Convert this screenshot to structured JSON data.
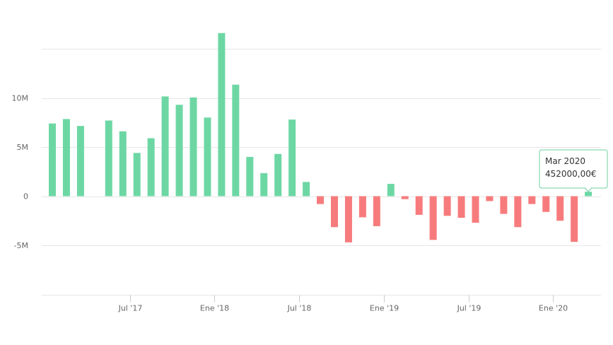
{
  "chart_data": {
    "type": "bar",
    "x": [
      "2017-01",
      "2017-02",
      "2017-03",
      "2017-04",
      "2017-05",
      "2017-06",
      "2017-07",
      "2017-08",
      "2017-09",
      "2017-10",
      "2017-11",
      "2017-12",
      "2018-01",
      "2018-02",
      "2018-03",
      "2018-04",
      "2018-05",
      "2018-06",
      "2018-07",
      "2018-08",
      "2018-09",
      "2018-10",
      "2018-11",
      "2018-12",
      "2019-01",
      "2019-02",
      "2019-03",
      "2019-04",
      "2019-05",
      "2019-06",
      "2019-07",
      "2019-08",
      "2019-09",
      "2019-10",
      "2019-11",
      "2019-12",
      "2020-01",
      "2020-02",
      "2020-03"
    ],
    "values": [
      7400000,
      7850000,
      7150000,
      null,
      7700000,
      6600000,
      4400000,
      5900000,
      10150000,
      9300000,
      10050000,
      8000000,
      16600000,
      11350000,
      4000000,
      2350000,
      4300000,
      7800000,
      1450000,
      -800000,
      -3150000,
      -4700000,
      -2150000,
      -3050000,
      1250000,
      -300000,
      -1900000,
      -4450000,
      -2000000,
      -2200000,
      -2700000,
      -500000,
      -1800000,
      -3150000,
      -800000,
      -1600000,
      -2500000,
      -4650000,
      452000
    ],
    "positive_color": "#6dd7a4",
    "negative_color": "#f77b7c",
    "ylim": [
      -10000000,
      15000000
    ],
    "yticks": [
      -5000000,
      0,
      5000000,
      10000000
    ],
    "ytick_labels": [
      "-5M",
      "0",
      "5M",
      "10M"
    ],
    "xtick_labels": [
      {
        "at": "2017-07",
        "label": "Jul '17"
      },
      {
        "at": "2018-01",
        "label": "Ene '18"
      },
      {
        "at": "2018-07",
        "label": "Jul '18"
      },
      {
        "at": "2019-01",
        "label": "Ene '19"
      },
      {
        "at": "2019-07",
        "label": "Jul '19"
      },
      {
        "at": "2020-01",
        "label": "Ene '20"
      }
    ],
    "grid": true,
    "legend": "none",
    "tooltip": {
      "at": "2020-03",
      "title": "Mar 2020",
      "value": "452000,00€",
      "border_color": "#6fd0a2"
    }
  }
}
